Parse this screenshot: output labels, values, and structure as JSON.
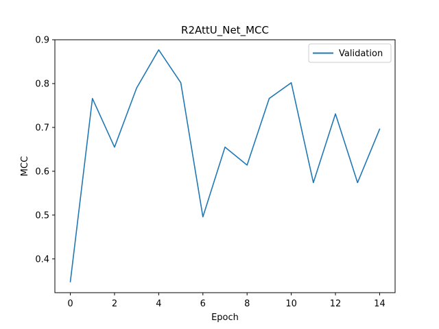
{
  "chart_data": {
    "type": "line",
    "title": "R2AttU_Net_MCC",
    "xlabel": "Epoch",
    "ylabel": "MCC",
    "xlim": [
      -0.7,
      14.7
    ],
    "ylim": [
      0.323,
      0.9
    ],
    "xticks": [
      0,
      2,
      4,
      6,
      8,
      10,
      12,
      14
    ],
    "xtick_labels": [
      "0",
      "2",
      "4",
      "6",
      "8",
      "10",
      "12",
      "14"
    ],
    "yticks": [
      0.4,
      0.5,
      0.6,
      0.7,
      0.8,
      0.9
    ],
    "ytick_labels": [
      "0.4",
      "0.5",
      "0.6",
      "0.7",
      "0.8",
      "0.9"
    ],
    "grid": false,
    "legend_position": "top-right",
    "series": [
      {
        "name": "Validation",
        "color": "#1f77b4",
        "x": [
          0,
          1,
          2,
          3,
          4,
          5,
          6,
          7,
          8,
          9,
          10,
          11,
          12,
          13,
          14
        ],
        "y": [
          0.348,
          0.766,
          0.655,
          0.79,
          0.877,
          0.802,
          0.496,
          0.655,
          0.614,
          0.766,
          0.802,
          0.574,
          0.731,
          0.574,
          0.696
        ]
      }
    ]
  }
}
